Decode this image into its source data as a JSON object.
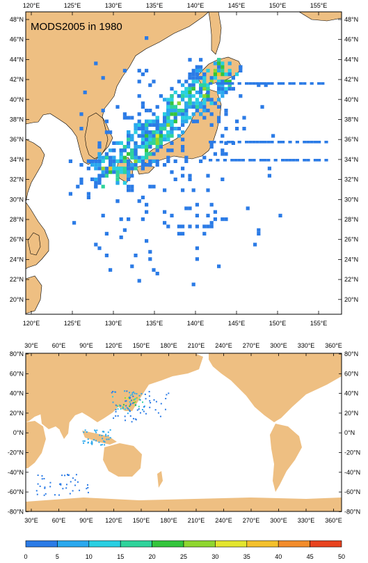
{
  "panel_top": {
    "title": "MODS2005 in 1980",
    "lon_labels": [
      "120°E",
      "125°E",
      "130°E",
      "135°E",
      "140°E",
      "145°E",
      "150°E",
      "155°E"
    ],
    "lat_labels": [
      "48°N",
      "46°N",
      "44°N",
      "42°N",
      "40°N",
      "38°N",
      "36°N",
      "34°N",
      "32°N",
      "30°N",
      "28°N",
      "26°N",
      "24°N",
      "22°N",
      "20°N"
    ]
  },
  "panel_bottom": {
    "lon_labels": [
      "30°E",
      "60°E",
      "90°E",
      "120°E",
      "150°E",
      "180°E",
      "210°E",
      "240°E",
      "270°E",
      "300°E",
      "330°E",
      "360°E"
    ],
    "lat_labels": [
      "80°N",
      "60°N",
      "40°N",
      "20°N",
      "0°N",
      "-20°N",
      "-40°N",
      "-60°N",
      "-80°N"
    ]
  },
  "colorbar": {
    "ticks": [
      "0",
      "5",
      "10",
      "15",
      "20",
      "25",
      "30",
      "35",
      "40",
      "45",
      "50"
    ],
    "colors": [
      "#2451d8",
      "#2b7be6",
      "#2aa8ee",
      "#29cfe2",
      "#2fd39b",
      "#33c53c",
      "#8fd62f",
      "#e3e52e",
      "#f4c02c",
      "#f28c2b",
      "#e8431f"
    ]
  },
  "colors": {
    "land": "#eebf82",
    "ocean": "#ffffff",
    "frame": "#000000"
  }
}
